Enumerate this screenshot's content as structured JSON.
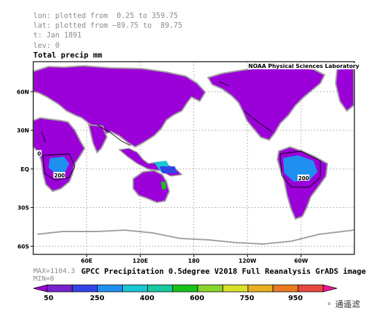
{
  "meta_lines": [
    "lon: plotted from  0.25 to 359.75",
    "lat: plotted from −89.75 to  89.75",
    "t: Jan 1891",
    "lev: 0"
  ],
  "stats": {
    "max": "MAX=1104.3",
    "min": "MIN=0"
  },
  "watermark": "通遥滤",
  "chart_data": {
    "type": "heatmap",
    "title": "Total precip mm",
    "credit": "NOAA Physical Sciences Laboratory",
    "caption": "GPCC Precipitation 0.5degree V2018 Full Reanalysis GrADS image",
    "x_ticks": [
      "60E",
      "120E",
      "180",
      "120W",
      "60W"
    ],
    "y_ticks": [
      "60N",
      "30N",
      "EQ",
      "30S",
      "60S"
    ],
    "x_range_deg_east": [
      0.25,
      359.75
    ],
    "y_range_deg_north": [
      -89.75,
      89.75
    ],
    "grid": true,
    "contour_labels": [
      "0",
      "200",
      "200"
    ],
    "colorbar": {
      "tick_labels": [
        "50",
        "250",
        "400",
        "600",
        "750",
        "950"
      ],
      "colors": [
        "#9b00d8",
        "#7722cc",
        "#3344e6",
        "#1f8ff0",
        "#19c6d6",
        "#18c8a0",
        "#18c21a",
        "#88d42a",
        "#d8e02a",
        "#e8b020",
        "#e87a22",
        "#e84640",
        "#f01890"
      ]
    }
  }
}
